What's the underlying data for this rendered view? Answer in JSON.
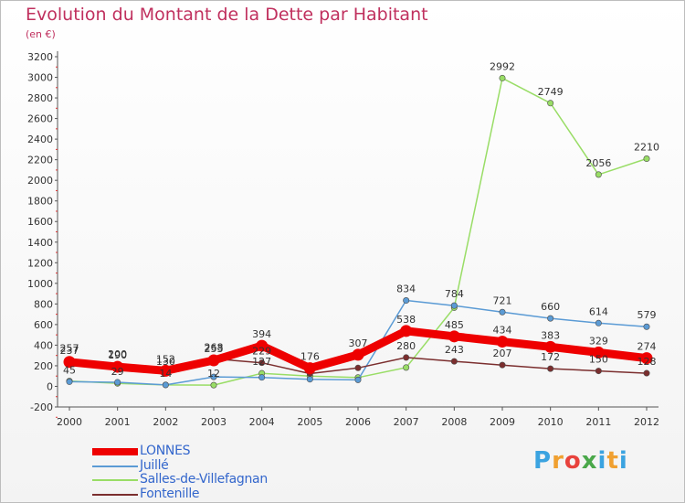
{
  "chart_data": {
    "type": "line",
    "title": "Evolution du Montant de la Dette par Habitant",
    "subtitle": "(en €)",
    "xlabel": "",
    "ylabel": "",
    "ylim": [
      -200,
      3200
    ],
    "ytick_step": 200,
    "grid": false,
    "legend_position": "bottom-left",
    "x": [
      "2000",
      "2001",
      "2002",
      "2003",
      "2004",
      "2005",
      "2006",
      "2007",
      "2008",
      "2009",
      "2010",
      "2011",
      "2012"
    ],
    "series": [
      {
        "name": "LONNES",
        "color": "#ee0000",
        "values": [
          237,
          190,
          152,
          253,
          394,
          176,
          307,
          538,
          485,
          434,
          383,
          329,
          274
        ]
      },
      {
        "name": "Juillé",
        "color": "#5b9bd5",
        "values": [
          45,
          40,
          14,
          92,
          87,
          69,
          63,
          834,
          784,
          721,
          660,
          614,
          579
        ]
      },
      {
        "name": "Salles-de-Villefagnan",
        "color": "#99dd66",
        "values": [
          52,
          29,
          14,
          12,
          127,
          100,
          86,
          183,
          764,
          2992,
          2749,
          2056,
          2210
        ]
      },
      {
        "name": "Fontenille",
        "color": "#7b2e2e",
        "values": [
          257,
          200,
          130,
          268,
          229,
          124,
          179,
          280,
          243,
          207,
          172,
          150,
          128
        ]
      }
    ],
    "point_labels": {
      "LONNES": [
        "237",
        "190",
        "152",
        "253",
        "394",
        "176",
        "307",
        "538",
        "485",
        "434",
        "383",
        "329",
        "274"
      ],
      "Juillé": [
        "45",
        "",
        "",
        "",
        "",
        "",
        "",
        "834",
        "784",
        "721",
        "660",
        "614",
        "579"
      ],
      "Salles-de-Villefagnan": [
        "",
        "29",
        "14",
        "12",
        "127",
        "",
        "",
        "",
        "",
        "2992",
        "2749",
        "2056",
        "2210"
      ],
      "Fontenille": [
        "257",
        "200",
        "130",
        "268",
        "229",
        "",
        "",
        "280",
        "243",
        "207",
        "172",
        "150",
        "128"
      ]
    }
  },
  "branding": {
    "logo_text": "Proxiti",
    "letters": [
      "P",
      "r",
      "o",
      "x",
      "i",
      "t",
      "i"
    ],
    "letter_colors": [
      "#3ba3e0",
      "#f0a030",
      "#e8423c",
      "#4aa84a",
      "#3ba3e0",
      "#f0a030",
      "#3ba3e0"
    ]
  }
}
